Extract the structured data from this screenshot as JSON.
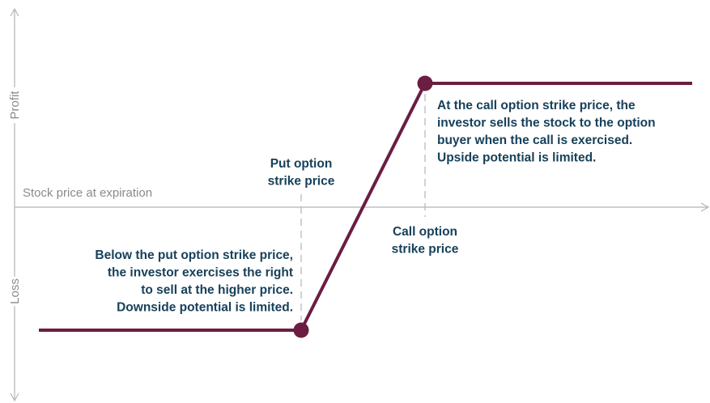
{
  "axes": {
    "y_top": "Profit",
    "y_bottom": "Loss",
    "x": "Stock price at expiration"
  },
  "put_strike": {
    "lines": [
      "Put option",
      "strike price"
    ]
  },
  "call_strike": {
    "lines": [
      "Call option",
      "strike price"
    ]
  },
  "put_note": {
    "lines": [
      "Below the put option strike price,",
      "the investor exercises the right",
      "to sell at the higher price.",
      "Downside potential is limited."
    ]
  },
  "call_note": {
    "lines": [
      "At the call option strike price, the",
      "investor sells the stock to the option",
      "buyer when the call is exercised.",
      "Upside potential is limited."
    ]
  }
}
